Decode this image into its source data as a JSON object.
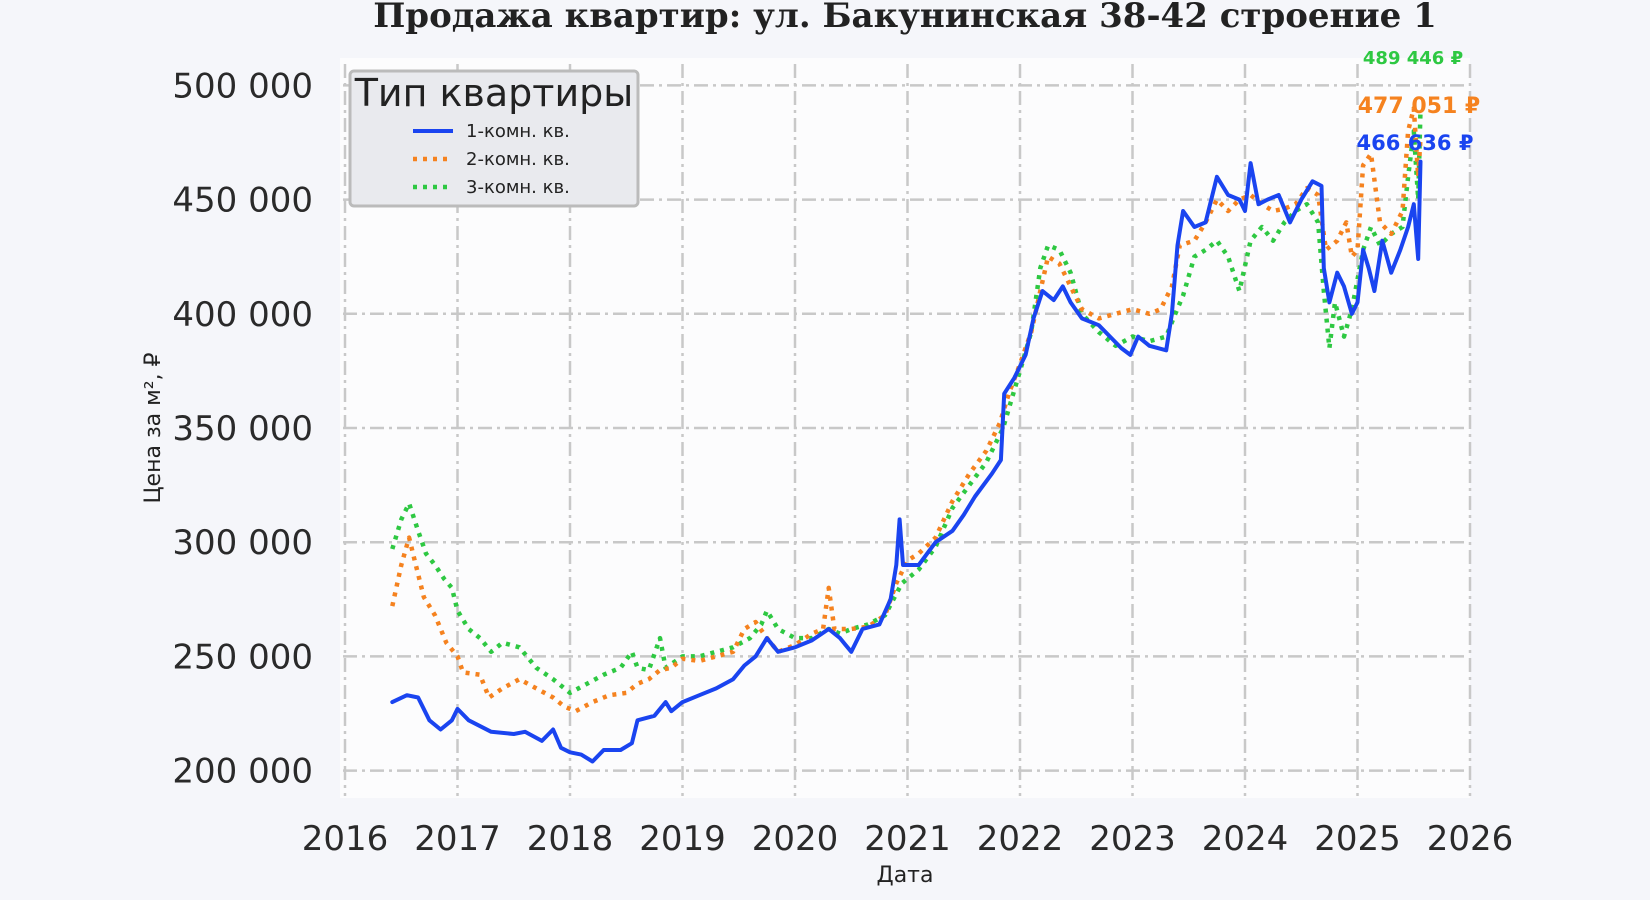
{
  "chart_data": {
    "type": "line",
    "title": "Продажа квартир: ул. Бакунинская 38-42 строение 1",
    "xlabel": "Дата",
    "ylabel": "Цена за м², ₽",
    "xlim": [
      2016,
      2026
    ],
    "ylim": [
      188000,
      512000
    ],
    "x_ticks": [
      "2016",
      "2017",
      "2018",
      "2019",
      "2020",
      "2021",
      "2022",
      "2023",
      "2024",
      "2025",
      "2026"
    ],
    "y_ticks": [
      "200 000",
      "250 000",
      "300 000",
      "350 000",
      "400 000",
      "450 000",
      "500 000"
    ],
    "y_tick_values": [
      200000,
      250000,
      300000,
      350000,
      400000,
      450000,
      500000
    ],
    "grid": true,
    "legend": {
      "title": "Тип квартиры",
      "position": "top-left"
    },
    "series": [
      {
        "name": "1-комн. кв.",
        "color": "#1a44f0",
        "style": "solid",
        "end_label": "466 636 ₽",
        "points": [
          [
            2016.42,
            230000
          ],
          [
            2016.55,
            233000
          ],
          [
            2016.65,
            232000
          ],
          [
            2016.75,
            222000
          ],
          [
            2016.85,
            218000
          ],
          [
            2016.95,
            222000
          ],
          [
            2017.0,
            227000
          ],
          [
            2017.1,
            222000
          ],
          [
            2017.3,
            217000
          ],
          [
            2017.5,
            216000
          ],
          [
            2017.6,
            217000
          ],
          [
            2017.75,
            213000
          ],
          [
            2017.85,
            218000
          ],
          [
            2017.92,
            210000
          ],
          [
            2018.0,
            208000
          ],
          [
            2018.1,
            207000
          ],
          [
            2018.2,
            204000
          ],
          [
            2018.3,
            209000
          ],
          [
            2018.45,
            209000
          ],
          [
            2018.55,
            212000
          ],
          [
            2018.6,
            222000
          ],
          [
            2018.75,
            224000
          ],
          [
            2018.85,
            230000
          ],
          [
            2018.9,
            226000
          ],
          [
            2019.0,
            230000
          ],
          [
            2019.15,
            233000
          ],
          [
            2019.3,
            236000
          ],
          [
            2019.45,
            240000
          ],
          [
            2019.55,
            246000
          ],
          [
            2019.65,
            250000
          ],
          [
            2019.75,
            258000
          ],
          [
            2019.85,
            252000
          ],
          [
            2020.0,
            254000
          ],
          [
            2020.15,
            257000
          ],
          [
            2020.3,
            262000
          ],
          [
            2020.4,
            258000
          ],
          [
            2020.45,
            255000
          ],
          [
            2020.5,
            252000
          ],
          [
            2020.6,
            262000
          ],
          [
            2020.75,
            264000
          ],
          [
            2020.85,
            275000
          ],
          [
            2020.9,
            290000
          ],
          [
            2020.93,
            310000
          ],
          [
            2020.96,
            290000
          ],
          [
            2021.1,
            290000
          ],
          [
            2021.25,
            300000
          ],
          [
            2021.4,
            305000
          ],
          [
            2021.5,
            312000
          ],
          [
            2021.6,
            320000
          ],
          [
            2021.75,
            330000
          ],
          [
            2021.83,
            336000
          ],
          [
            2021.86,
            365000
          ],
          [
            2021.95,
            372000
          ],
          [
            2022.05,
            382000
          ],
          [
            2022.12,
            398000
          ],
          [
            2022.2,
            410000
          ],
          [
            2022.3,
            406000
          ],
          [
            2022.38,
            412000
          ],
          [
            2022.45,
            405000
          ],
          [
            2022.55,
            398000
          ],
          [
            2022.7,
            395000
          ],
          [
            2022.8,
            390000
          ],
          [
            2022.9,
            385000
          ],
          [
            2022.98,
            382000
          ],
          [
            2023.05,
            390000
          ],
          [
            2023.15,
            386000
          ],
          [
            2023.3,
            384000
          ],
          [
            2023.35,
            400000
          ],
          [
            2023.4,
            430000
          ],
          [
            2023.45,
            445000
          ],
          [
            2023.55,
            438000
          ],
          [
            2023.65,
            440000
          ],
          [
            2023.75,
            460000
          ],
          [
            2023.85,
            452000
          ],
          [
            2023.95,
            450000
          ],
          [
            2024.0,
            445000
          ],
          [
            2024.05,
            466000
          ],
          [
            2024.12,
            448000
          ],
          [
            2024.2,
            450000
          ],
          [
            2024.3,
            452000
          ],
          [
            2024.4,
            440000
          ],
          [
            2024.5,
            450000
          ],
          [
            2024.6,
            458000
          ],
          [
            2024.68,
            456000
          ],
          [
            2024.7,
            420000
          ],
          [
            2024.75,
            405000
          ],
          [
            2024.82,
            418000
          ],
          [
            2024.88,
            412000
          ],
          [
            2024.95,
            400000
          ],
          [
            2025.0,
            405000
          ],
          [
            2025.05,
            428000
          ],
          [
            2025.1,
            420000
          ],
          [
            2025.15,
            410000
          ],
          [
            2025.22,
            432000
          ],
          [
            2025.3,
            418000
          ],
          [
            2025.38,
            428000
          ],
          [
            2025.45,
            438000
          ],
          [
            2025.5,
            448000
          ],
          [
            2025.54,
            424000
          ],
          [
            2025.56,
            466636
          ]
        ]
      },
      {
        "name": "2-комн. кв.",
        "color": "#f5821f",
        "style": "dotted",
        "end_label": "477 051 ₽",
        "points": [
          [
            2016.42,
            272000
          ],
          [
            2016.5,
            290000
          ],
          [
            2016.57,
            302000
          ],
          [
            2016.62,
            292000
          ],
          [
            2016.7,
            276000
          ],
          [
            2016.8,
            268000
          ],
          [
            2016.9,
            256000
          ],
          [
            2017.0,
            250000
          ],
          [
            2017.05,
            243000
          ],
          [
            2017.2,
            242000
          ],
          [
            2017.28,
            232000
          ],
          [
            2017.4,
            236000
          ],
          [
            2017.55,
            240000
          ],
          [
            2017.7,
            236000
          ],
          [
            2017.85,
            232000
          ],
          [
            2017.95,
            228000
          ],
          [
            2018.05,
            226000
          ],
          [
            2018.2,
            230000
          ],
          [
            2018.35,
            233000
          ],
          [
            2018.5,
            234000
          ],
          [
            2018.6,
            238000
          ],
          [
            2018.7,
            240000
          ],
          [
            2018.8,
            244000
          ],
          [
            2018.9,
            245000
          ],
          [
            2019.0,
            249000
          ],
          [
            2019.15,
            248000
          ],
          [
            2019.3,
            250000
          ],
          [
            2019.45,
            252000
          ],
          [
            2019.55,
            262000
          ],
          [
            2019.65,
            265000
          ],
          [
            2019.75,
            258000
          ],
          [
            2019.85,
            252000
          ],
          [
            2020.0,
            255000
          ],
          [
            2020.15,
            260000
          ],
          [
            2020.25,
            262000
          ],
          [
            2020.3,
            280000
          ],
          [
            2020.35,
            262000
          ],
          [
            2020.5,
            262000
          ],
          [
            2020.65,
            263000
          ],
          [
            2020.8,
            268000
          ],
          [
            2020.9,
            282000
          ],
          [
            2021.0,
            292000
          ],
          [
            2021.1,
            295000
          ],
          [
            2021.25,
            302000
          ],
          [
            2021.4,
            318000
          ],
          [
            2021.55,
            330000
          ],
          [
            2021.7,
            340000
          ],
          [
            2021.82,
            352000
          ],
          [
            2021.9,
            365000
          ],
          [
            2022.0,
            378000
          ],
          [
            2022.1,
            392000
          ],
          [
            2022.18,
            410000
          ],
          [
            2022.25,
            425000
          ],
          [
            2022.35,
            422000
          ],
          [
            2022.45,
            412000
          ],
          [
            2022.55,
            402000
          ],
          [
            2022.7,
            398000
          ],
          [
            2022.85,
            400000
          ],
          [
            2023.0,
            402000
          ],
          [
            2023.15,
            400000
          ],
          [
            2023.25,
            402000
          ],
          [
            2023.35,
            412000
          ],
          [
            2023.42,
            430000
          ],
          [
            2023.55,
            432000
          ],
          [
            2023.65,
            440000
          ],
          [
            2023.75,
            450000
          ],
          [
            2023.85,
            445000
          ],
          [
            2023.95,
            450000
          ],
          [
            2024.05,
            452000
          ],
          [
            2024.15,
            448000
          ],
          [
            2024.25,
            445000
          ],
          [
            2024.35,
            446000
          ],
          [
            2024.45,
            448000
          ],
          [
            2024.55,
            455000
          ],
          [
            2024.65,
            452000
          ],
          [
            2024.72,
            428000
          ],
          [
            2024.82,
            432000
          ],
          [
            2024.9,
            440000
          ],
          [
            2024.95,
            425000
          ],
          [
            2025.0,
            428000
          ],
          [
            2025.05,
            465000
          ],
          [
            2025.12,
            470000
          ],
          [
            2025.2,
            440000
          ],
          [
            2025.3,
            435000
          ],
          [
            2025.4,
            445000
          ],
          [
            2025.45,
            480000
          ],
          [
            2025.5,
            490000
          ],
          [
            2025.54,
            460000
          ],
          [
            2025.56,
            477051
          ]
        ]
      },
      {
        "name": "3-комн. кв.",
        "color": "#2ec842",
        "style": "dotted",
        "end_label": "489 446 ₽",
        "points": [
          [
            2016.42,
            297000
          ],
          [
            2016.5,
            310000
          ],
          [
            2016.57,
            317000
          ],
          [
            2016.65,
            305000
          ],
          [
            2016.72,
            295000
          ],
          [
            2016.8,
            290000
          ],
          [
            2016.88,
            284000
          ],
          [
            2016.95,
            280000
          ],
          [
            2017.0,
            270000
          ],
          [
            2017.1,
            262000
          ],
          [
            2017.2,
            258000
          ],
          [
            2017.3,
            252000
          ],
          [
            2017.4,
            256000
          ],
          [
            2017.55,
            254000
          ],
          [
            2017.7,
            245000
          ],
          [
            2017.85,
            240000
          ],
          [
            2018.0,
            234000
          ],
          [
            2018.15,
            238000
          ],
          [
            2018.3,
            242000
          ],
          [
            2018.45,
            245000
          ],
          [
            2018.55,
            252000
          ],
          [
            2018.6,
            245000
          ],
          [
            2018.7,
            244000
          ],
          [
            2018.8,
            258000
          ],
          [
            2018.85,
            245000
          ],
          [
            2019.0,
            250000
          ],
          [
            2019.15,
            250000
          ],
          [
            2019.3,
            252000
          ],
          [
            2019.45,
            254000
          ],
          [
            2019.6,
            258000
          ],
          [
            2019.7,
            264000
          ],
          [
            2019.75,
            270000
          ],
          [
            2019.85,
            262000
          ],
          [
            2020.0,
            258000
          ],
          [
            2020.15,
            258000
          ],
          [
            2020.3,
            262000
          ],
          [
            2020.4,
            260000
          ],
          [
            2020.5,
            262000
          ],
          [
            2020.65,
            264000
          ],
          [
            2020.8,
            268000
          ],
          [
            2020.95,
            282000
          ],
          [
            2021.1,
            288000
          ],
          [
            2021.25,
            298000
          ],
          [
            2021.4,
            315000
          ],
          [
            2021.55,
            325000
          ],
          [
            2021.7,
            335000
          ],
          [
            2021.85,
            350000
          ],
          [
            2022.0,
            375000
          ],
          [
            2022.1,
            392000
          ],
          [
            2022.18,
            420000
          ],
          [
            2022.25,
            430000
          ],
          [
            2022.35,
            428000
          ],
          [
            2022.45,
            418000
          ],
          [
            2022.55,
            400000
          ],
          [
            2022.7,
            392000
          ],
          [
            2022.85,
            386000
          ],
          [
            2023.0,
            390000
          ],
          [
            2023.15,
            388000
          ],
          [
            2023.3,
            390000
          ],
          [
            2023.38,
            400000
          ],
          [
            2023.45,
            408000
          ],
          [
            2023.55,
            425000
          ],
          [
            2023.65,
            428000
          ],
          [
            2023.75,
            432000
          ],
          [
            2023.85,
            425000
          ],
          [
            2023.95,
            410000
          ],
          [
            2024.05,
            432000
          ],
          [
            2024.15,
            438000
          ],
          [
            2024.25,
            432000
          ],
          [
            2024.35,
            440000
          ],
          [
            2024.45,
            445000
          ],
          [
            2024.55,
            448000
          ],
          [
            2024.65,
            440000
          ],
          [
            2024.7,
            410000
          ],
          [
            2024.75,
            385000
          ],
          [
            2024.8,
            405000
          ],
          [
            2024.88,
            390000
          ],
          [
            2024.95,
            402000
          ],
          [
            2025.05,
            428000
          ],
          [
            2025.12,
            438000
          ],
          [
            2025.2,
            430000
          ],
          [
            2025.3,
            435000
          ],
          [
            2025.4,
            438000
          ],
          [
            2025.45,
            460000
          ],
          [
            2025.5,
            480000
          ],
          [
            2025.54,
            450000
          ],
          [
            2025.56,
            489446
          ]
        ]
      }
    ]
  }
}
